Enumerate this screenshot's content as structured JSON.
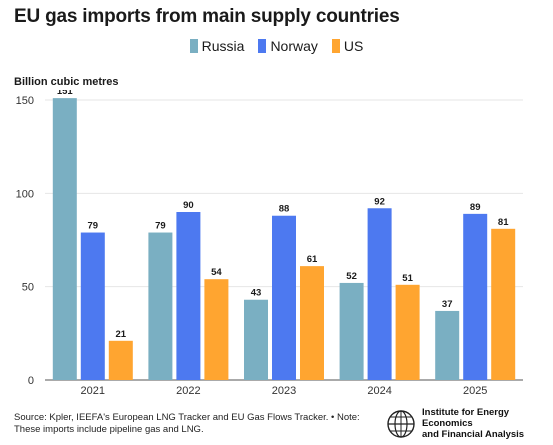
{
  "title": "EU gas imports from main supply countries",
  "units_label": "Billion cubic metres",
  "footer": "Source: Kpler, IEEFA's European LNG Tracker and EU Gas Flows Tracker. • Note: These imports include pipeline gas and LNG.",
  "logo": {
    "icon": "globe-logo-icon",
    "line1": "Institute for Energy Economics",
    "line2": "and Financial Analysis"
  },
  "chart_data": {
    "type": "bar",
    "categories": [
      "2021",
      "2022",
      "2023",
      "2024",
      "2025"
    ],
    "series": [
      {
        "name": "Russia",
        "color": "#7aafc2",
        "values": [
          151,
          79,
          43,
          52,
          37
        ]
      },
      {
        "name": "Norway",
        "color": "#4d79f0",
        "values": [
          79,
          90,
          88,
          92,
          89
        ]
      },
      {
        "name": "US",
        "color": "#ffa530",
        "values": [
          21,
          54,
          61,
          51,
          81
        ]
      }
    ],
    "yticks": [
      "0",
      "50",
      "100",
      "150"
    ],
    "ylim": [
      0,
      150
    ],
    "grid": true,
    "legend_position": "top-center",
    "ylabel": "Billion cubic metres"
  }
}
